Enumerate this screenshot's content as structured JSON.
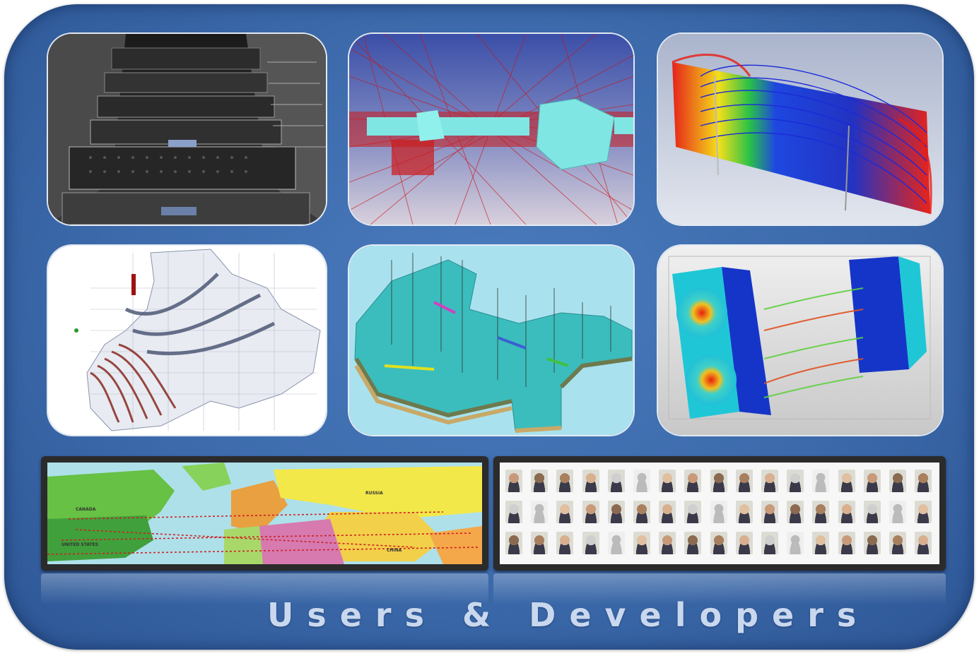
{
  "caption": "Users & Developers",
  "tiles": [
    {
      "icon": "server-rack-photo"
    },
    {
      "icon": "red-mesh-simulation"
    },
    {
      "icon": "flow-streamlines-visualization"
    },
    {
      "icon": "wireframe-terrain-model"
    },
    {
      "icon": "geologic-reservoir-model"
    },
    {
      "icon": "flow-field-visualization"
    }
  ],
  "map": {
    "icon": "world-map",
    "labels": [
      "CANADA",
      "RUSSIA",
      "UNITED STATES",
      "CHINA"
    ]
  },
  "faces": {
    "icon": "developer-portraits",
    "rows": 3,
    "cols": 17
  },
  "colors": {
    "frame": "#3c6aab",
    "caption": "#c9d8ee",
    "mesh": "#cc1111",
    "cyan": "#7fe6e3"
  }
}
